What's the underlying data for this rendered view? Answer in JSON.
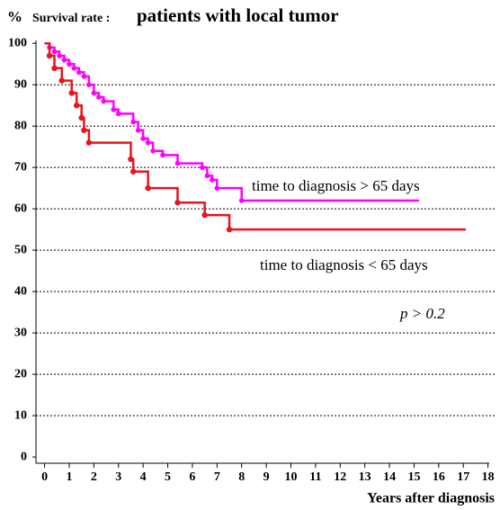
{
  "chart_data": {
    "type": "step",
    "y_unit": "%",
    "title_prefix": "Survival rate :",
    "title": "patients with local tumor",
    "x_label": "Years after diagnosis",
    "xlim": [
      -0.35,
      18.05
    ],
    "ylim": [
      -1.5,
      100.7
    ],
    "xticks": [
      0,
      1,
      2,
      3,
      4,
      5,
      6,
      7,
      8,
      9,
      10,
      11,
      12,
      13,
      14,
      15,
      16,
      17,
      18
    ],
    "yticks": [
      0,
      10,
      20,
      30,
      40,
      50,
      60,
      70,
      80,
      90,
      100
    ],
    "grid": true,
    "series": [
      {
        "name": "time to diagnosis > 65 days",
        "color": "#ff00ff",
        "x": [
          0,
          0.2,
          0.4,
          0.6,
          0.8,
          1.0,
          1.2,
          1.4,
          1.6,
          1.8,
          2.0,
          2.2,
          2.4,
          2.8,
          3.0,
          3.6,
          3.8,
          4.0,
          4.2,
          4.4,
          4.8,
          5.4,
          6.4,
          6.6,
          6.8,
          7.0,
          8.0,
          15.2
        ],
        "values": [
          100,
          99,
          98,
          97,
          96,
          95,
          94,
          93,
          92,
          90,
          88,
          87,
          86,
          84,
          83,
          81,
          79,
          77,
          76,
          74,
          73,
          71,
          70,
          68,
          67,
          65,
          62,
          62
        ]
      },
      {
        "name": "time to diagnosis < 65 days",
        "color": "#e8141e",
        "x": [
          0,
          0.2,
          0.4,
          0.7,
          1.1,
          1.3,
          1.5,
          1.6,
          1.8,
          3.5,
          3.6,
          4.2,
          5.4,
          6.5,
          7.5,
          17.1
        ],
        "values": [
          100,
          97,
          94,
          91,
          88,
          85,
          82,
          79,
          76,
          72,
          69,
          65,
          61.5,
          58.5,
          55,
          55
        ]
      }
    ],
    "annotation": "p > 0.2"
  }
}
